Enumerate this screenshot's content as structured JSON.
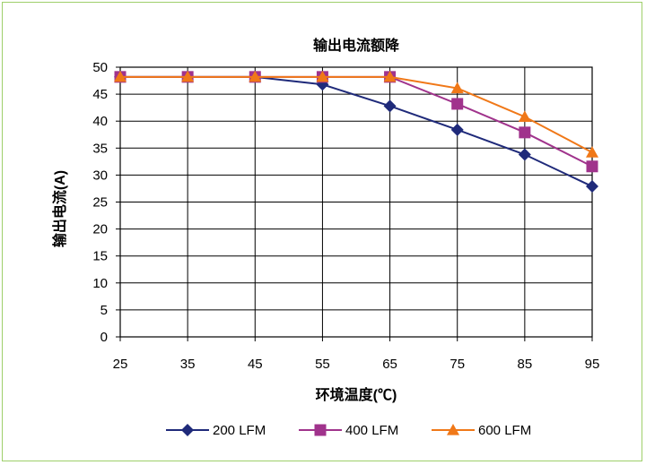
{
  "chart_data": {
    "type": "line",
    "title": "输出电流额降",
    "xlabel": "环境温度(℃)",
    "ylabel": "输出电流(A)",
    "x": [
      25,
      35,
      45,
      55,
      65,
      75,
      85,
      95
    ],
    "xlim": [
      25,
      95
    ],
    "ylim": [
      0,
      50
    ],
    "yticks": [
      0,
      5,
      10,
      15,
      20,
      25,
      30,
      35,
      40,
      45,
      50
    ],
    "grid": true,
    "legend_position": "bottom",
    "series": [
      {
        "name": "200 LFM",
        "color": "#1f2a7a",
        "marker": "diamond",
        "values": [
          48.2,
          48.2,
          48.2,
          46.8,
          42.8,
          38.4,
          33.8,
          27.9
        ]
      },
      {
        "name": "400 LFM",
        "color": "#a0338c",
        "marker": "square",
        "values": [
          48.2,
          48.2,
          48.2,
          48.2,
          48.2,
          43.2,
          37.9,
          31.6
        ]
      },
      {
        "name": "600 LFM",
        "color": "#f07818",
        "marker": "triangle",
        "values": [
          48.2,
          48.2,
          48.2,
          48.2,
          48.2,
          46.1,
          40.8,
          34.2
        ]
      }
    ]
  }
}
